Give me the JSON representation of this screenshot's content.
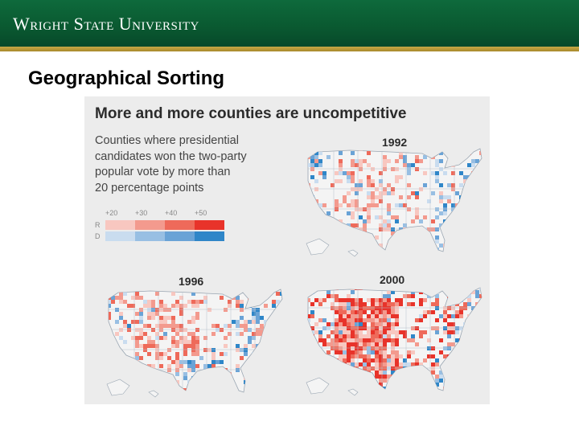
{
  "header": {
    "university_name": "Wright State University",
    "brand_green": "#0b5e34",
    "accent_gold": "#b9993a"
  },
  "slide": {
    "title": "Geographical Sorting"
  },
  "figure": {
    "headline": "More and more counties are uncompetitive",
    "subtitle": "Counties where presidential\ncandidates won the two-party\npopular vote by more than\n20 percentage points",
    "legend": {
      "ticks": [
        "+20",
        "+30",
        "+40",
        "+50"
      ],
      "rows": [
        {
          "label": "R",
          "colors": [
            "#f8c7c0",
            "#f39a8e",
            "#ee6a5a",
            "#e8332a"
          ]
        },
        {
          "label": "D",
          "colors": [
            "#c9dcef",
            "#98bfe3",
            "#6aa3d6",
            "#2f86c8"
          ]
        }
      ]
    },
    "maps": [
      {
        "year": "1992",
        "red_intensity": 0.35,
        "blue_intensity": 0.45
      },
      {
        "year": "1996",
        "red_intensity": 0.45,
        "blue_intensity": 0.4
      },
      {
        "year": "2000",
        "red_intensity": 0.85,
        "blue_intensity": 0.35
      }
    ]
  }
}
